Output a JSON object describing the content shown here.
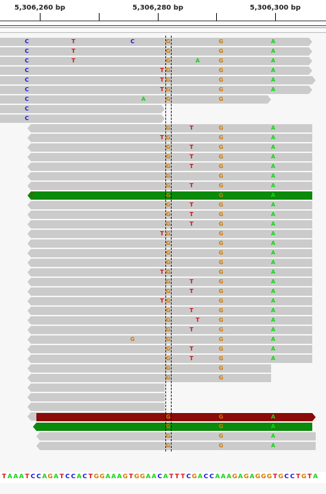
{
  "ruler": {
    "labels": [
      "5,306,260 bp",
      "5,306,280 bp",
      "5,306,300 bp"
    ]
  },
  "colors": {
    "read_gray": "#cbcbcb",
    "read_green": "#0b8a0b",
    "read_red": "#8b0a0a",
    "A": "#19d119",
    "C": "#1414d6",
    "G": "#d17a00",
    "T": "#d11414"
  },
  "reads": [
    {
      "strand": "+",
      "color": "gray",
      "bases": [
        {
          "p": 39,
          "b": "C"
        },
        {
          "p": 107,
          "b": "T"
        },
        {
          "p": 193,
          "b": "C"
        },
        {
          "p": 245,
          "b": "G"
        },
        {
          "p": 322,
          "b": "G"
        },
        {
          "p": 398,
          "b": "A"
        }
      ]
    },
    {
      "strand": "+",
      "color": "gray",
      "bases": [
        {
          "p": 39,
          "b": "C"
        },
        {
          "p": 107,
          "b": "T"
        },
        {
          "p": 245,
          "b": "G"
        },
        {
          "p": 322,
          "b": "G"
        },
        {
          "p": 398,
          "b": "A"
        }
      ]
    },
    {
      "strand": "+",
      "color": "gray",
      "bases": [
        {
          "p": 39,
          "b": "C"
        },
        {
          "p": 107,
          "b": "T"
        },
        {
          "p": 245,
          "b": "G"
        },
        {
          "p": 288,
          "b": "A"
        },
        {
          "p": 322,
          "b": "G"
        },
        {
          "p": 398,
          "b": "A"
        }
      ]
    },
    {
      "strand": "+",
      "color": "gray",
      "bases": [
        {
          "p": 39,
          "b": "C"
        },
        {
          "p": 236,
          "b": "T"
        },
        {
          "p": 245,
          "b": "G"
        },
        {
          "p": 322,
          "b": "G"
        },
        {
          "p": 398,
          "b": "A"
        }
      ]
    },
    {
      "strand": "+",
      "color": "gray",
      "bases": [
        {
          "p": 39,
          "b": "C"
        },
        {
          "p": 236,
          "b": "T"
        },
        {
          "p": 245,
          "b": "G"
        },
        {
          "p": 322,
          "b": "G"
        },
        {
          "p": 398,
          "b": "A"
        }
      ]
    },
    {
      "strand": "+",
      "color": "gray",
      "bases": [
        {
          "p": 39,
          "b": "C"
        },
        {
          "p": 236,
          "b": "T"
        },
        {
          "p": 245,
          "b": "G"
        },
        {
          "p": 322,
          "b": "G"
        },
        {
          "p": 398,
          "b": "A"
        }
      ]
    },
    {
      "strand": "+",
      "color": "gray",
      "bases": [
        {
          "p": 39,
          "b": "C"
        },
        {
          "p": 209,
          "b": "A"
        },
        {
          "p": 245,
          "b": "G"
        },
        {
          "p": 322,
          "b": "G"
        }
      ]
    },
    {
      "strand": "+",
      "color": "gray",
      "bases": [
        {
          "p": 39,
          "b": "C"
        }
      ]
    },
    {
      "strand": "+",
      "color": "gray",
      "bases": [
        {
          "p": 39,
          "b": "C"
        }
      ]
    },
    {
      "strand": "-",
      "color": "gray",
      "bases": [
        {
          "p": 245,
          "b": "G"
        },
        {
          "p": 279,
          "b": "T"
        },
        {
          "p": 322,
          "b": "G"
        },
        {
          "p": 398,
          "b": "A"
        }
      ]
    },
    {
      "strand": "-",
      "color": "gray",
      "bases": [
        {
          "p": 236,
          "b": "T"
        },
        {
          "p": 245,
          "b": "G"
        },
        {
          "p": 322,
          "b": "G"
        },
        {
          "p": 398,
          "b": "A"
        }
      ]
    },
    {
      "strand": "-",
      "color": "gray",
      "bases": [
        {
          "p": 245,
          "b": "G"
        },
        {
          "p": 279,
          "b": "T"
        },
        {
          "p": 322,
          "b": "G"
        },
        {
          "p": 398,
          "b": "A"
        }
      ]
    },
    {
      "strand": "-",
      "color": "gray",
      "bases": [
        {
          "p": 245,
          "b": "G"
        },
        {
          "p": 279,
          "b": "T"
        },
        {
          "p": 322,
          "b": "G"
        },
        {
          "p": 398,
          "b": "A"
        }
      ]
    },
    {
      "strand": "-",
      "color": "gray",
      "bases": [
        {
          "p": 245,
          "b": "G"
        },
        {
          "p": 279,
          "b": "T"
        },
        {
          "p": 322,
          "b": "G"
        },
        {
          "p": 398,
          "b": "A"
        }
      ]
    },
    {
      "strand": "-",
      "color": "gray",
      "bases": [
        {
          "p": 245,
          "b": "G"
        },
        {
          "p": 322,
          "b": "G"
        },
        {
          "p": 398,
          "b": "A"
        }
      ]
    },
    {
      "strand": "-",
      "color": "gray",
      "bases": [
        {
          "p": 245,
          "b": "G"
        },
        {
          "p": 279,
          "b": "T"
        },
        {
          "p": 322,
          "b": "G"
        },
        {
          "p": 398,
          "b": "A"
        }
      ]
    },
    {
      "strand": "-",
      "color": "green",
      "bases": [
        {
          "p": 46,
          "b": "T"
        },
        {
          "p": 245,
          "b": "G"
        },
        {
          "p": 322,
          "b": "G"
        },
        {
          "p": 398,
          "b": "A"
        }
      ]
    },
    {
      "strand": "-",
      "color": "gray",
      "bases": [
        {
          "p": 245,
          "b": "G"
        },
        {
          "p": 279,
          "b": "T"
        },
        {
          "p": 322,
          "b": "G"
        },
        {
          "p": 398,
          "b": "A"
        }
      ]
    },
    {
      "strand": "-",
      "color": "gray",
      "bases": [
        {
          "p": 245,
          "b": "G"
        },
        {
          "p": 279,
          "b": "T"
        },
        {
          "p": 322,
          "b": "G"
        },
        {
          "p": 398,
          "b": "A"
        }
      ]
    },
    {
      "strand": "-",
      "color": "gray",
      "bases": [
        {
          "p": 245,
          "b": "G"
        },
        {
          "p": 279,
          "b": "T"
        },
        {
          "p": 322,
          "b": "G"
        },
        {
          "p": 398,
          "b": "A"
        }
      ]
    },
    {
      "strand": "-",
      "color": "gray",
      "bases": [
        {
          "p": 236,
          "b": "T"
        },
        {
          "p": 245,
          "b": "G"
        },
        {
          "p": 322,
          "b": "G"
        },
        {
          "p": 398,
          "b": "A"
        }
      ]
    },
    {
      "strand": "-",
      "color": "gray",
      "bases": [
        {
          "p": 245,
          "b": "G"
        },
        {
          "p": 322,
          "b": "G"
        },
        {
          "p": 398,
          "b": "A"
        }
      ]
    },
    {
      "strand": "-",
      "color": "gray",
      "bases": [
        {
          "p": 245,
          "b": "G"
        },
        {
          "p": 322,
          "b": "G"
        },
        {
          "p": 398,
          "b": "A"
        }
      ]
    },
    {
      "strand": "-",
      "color": "gray",
      "bases": [
        {
          "p": 245,
          "b": "G"
        },
        {
          "p": 322,
          "b": "G"
        },
        {
          "p": 398,
          "b": "A"
        }
      ]
    },
    {
      "strand": "-",
      "color": "gray",
      "bases": [
        {
          "p": 236,
          "b": "T"
        },
        {
          "p": 245,
          "b": "G"
        },
        {
          "p": 322,
          "b": "G"
        },
        {
          "p": 398,
          "b": "A"
        }
      ]
    },
    {
      "strand": "-",
      "color": "gray",
      "bases": [
        {
          "p": 245,
          "b": "G"
        },
        {
          "p": 279,
          "b": "T"
        },
        {
          "p": 322,
          "b": "G"
        },
        {
          "p": 398,
          "b": "A"
        }
      ]
    },
    {
      "strand": "-",
      "color": "gray",
      "bases": [
        {
          "p": 245,
          "b": "G"
        },
        {
          "p": 279,
          "b": "T"
        },
        {
          "p": 322,
          "b": "G"
        },
        {
          "p": 398,
          "b": "A"
        }
      ]
    },
    {
      "strand": "-",
      "color": "gray",
      "bases": [
        {
          "p": 236,
          "b": "T"
        },
        {
          "p": 245,
          "b": "G"
        },
        {
          "p": 322,
          "b": "G"
        },
        {
          "p": 398,
          "b": "A"
        }
      ]
    },
    {
      "strand": "-",
      "color": "gray",
      "bases": [
        {
          "p": 245,
          "b": "G"
        },
        {
          "p": 279,
          "b": "T"
        },
        {
          "p": 322,
          "b": "G"
        },
        {
          "p": 398,
          "b": "A"
        }
      ]
    },
    {
      "strand": "-",
      "color": "gray",
      "bases": [
        {
          "p": 245,
          "b": "G"
        },
        {
          "p": 288,
          "b": "T"
        },
        {
          "p": 322,
          "b": "G"
        },
        {
          "p": 398,
          "b": "A"
        }
      ]
    },
    {
      "strand": "-",
      "color": "gray",
      "bases": [
        {
          "p": 245,
          "b": "G"
        },
        {
          "p": 279,
          "b": "T"
        },
        {
          "p": 322,
          "b": "G"
        },
        {
          "p": 398,
          "b": "A"
        }
      ]
    },
    {
      "strand": "-",
      "color": "gray",
      "bases": [
        {
          "p": 193,
          "b": "G"
        },
        {
          "p": 245,
          "b": "G"
        },
        {
          "p": 322,
          "b": "G"
        },
        {
          "p": 398,
          "b": "A"
        }
      ]
    },
    {
      "strand": "-",
      "color": "gray",
      "bases": [
        {
          "p": 245,
          "b": "G"
        },
        {
          "p": 279,
          "b": "T"
        },
        {
          "p": 322,
          "b": "G"
        },
        {
          "p": 398,
          "b": "A"
        }
      ]
    },
    {
      "strand": "-",
      "color": "gray",
      "bases": [
        {
          "p": 245,
          "b": "G"
        },
        {
          "p": 279,
          "b": "T"
        },
        {
          "p": 322,
          "b": "G"
        },
        {
          "p": 398,
          "b": "A"
        }
      ]
    },
    {
      "strand": "-",
      "color": "gray",
      "bases": [
        {
          "p": 245,
          "b": "G"
        },
        {
          "p": 322,
          "b": "G"
        }
      ]
    },
    {
      "strand": "-",
      "color": "gray",
      "bases": [
        {
          "p": 245,
          "b": "G"
        },
        {
          "p": 322,
          "b": "G"
        }
      ]
    },
    {
      "strand": "-",
      "color": "gray",
      "bases": []
    },
    {
      "strand": "-",
      "color": "gray",
      "bases": []
    },
    {
      "strand": "-",
      "color": "gray",
      "bases": []
    },
    {
      "strand": "-",
      "color": "gray",
      "bases": []
    },
    {
      "strand": "+",
      "color": "red",
      "bases": [
        {
          "p": 245,
          "b": "G"
        },
        {
          "p": 322,
          "b": "G"
        },
        {
          "p": 398,
          "b": "A"
        }
      ]
    },
    {
      "strand": "-",
      "color": "green",
      "bases": [
        {
          "p": 245,
          "b": "G"
        },
        {
          "p": 322,
          "b": "G"
        },
        {
          "p": 398,
          "b": "A"
        }
      ]
    },
    {
      "strand": "-",
      "color": "gray",
      "bases": [
        {
          "p": 245,
          "b": "G"
        },
        {
          "p": 322,
          "b": "G"
        },
        {
          "p": 398,
          "b": "A"
        }
      ]
    },
    {
      "strand": "-",
      "color": "gray",
      "bases": [
        {
          "p": 245,
          "b": "G"
        },
        {
          "p": 322,
          "b": "G"
        },
        {
          "p": 398,
          "b": "A"
        }
      ]
    }
  ],
  "reference_sequence": "TAAATCCAGATCCACTGGAAAGTGGAACATTTCGACCAAAGAGAGGGTGCCTGTA"
}
